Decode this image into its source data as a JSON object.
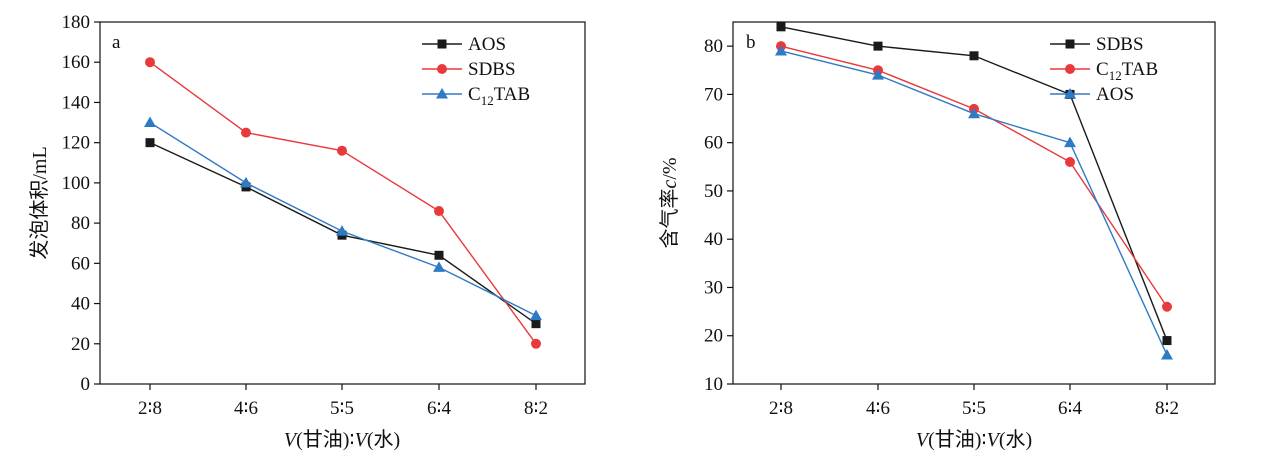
{
  "colors": {
    "black": "#1a1a1a",
    "red": "#e8393b",
    "blue": "#2e7bc4"
  },
  "chart_data": [
    {
      "type": "line",
      "panel_label": "a",
      "categories": [
        "2∶8",
        "4∶6",
        "5∶5",
        "6∶4",
        "8∶2"
      ],
      "xlabel_parts": [
        "V",
        "(甘油)∶",
        "V",
        "(水)"
      ],
      "ylabel": "发泡体积/mL",
      "ylim": [
        0,
        180
      ],
      "yticks": [
        0,
        20,
        40,
        60,
        80,
        100,
        120,
        140,
        160,
        180
      ],
      "grid": false,
      "legend_position": "top-right",
      "series": [
        {
          "name": "AOS",
          "name_parts": [
            "AOS"
          ],
          "color": "#1a1a1a",
          "marker": "square",
          "values": [
            120,
            98,
            74,
            64,
            30
          ]
        },
        {
          "name": "SDBS",
          "name_parts": [
            "SDBS"
          ],
          "color": "#e8393b",
          "marker": "circle",
          "values": [
            160,
            125,
            116,
            86,
            20
          ]
        },
        {
          "name": "C12TAB",
          "name_parts": [
            "C",
            "12",
            "TAB"
          ],
          "color": "#2e7bc4",
          "marker": "triangle",
          "values": [
            130,
            100,
            76,
            58,
            34
          ]
        }
      ]
    },
    {
      "type": "line",
      "panel_label": "b",
      "categories": [
        "2∶8",
        "4∶6",
        "5∶5",
        "6∶4",
        "8∶2"
      ],
      "xlabel_parts": [
        "V",
        "(甘油)∶",
        "V",
        "(水)"
      ],
      "ylabel_parts": [
        "含气率",
        "c",
        "/%"
      ],
      "ylim": [
        10,
        85
      ],
      "yticks": [
        10,
        20,
        30,
        40,
        50,
        60,
        70,
        80
      ],
      "grid": false,
      "legend_position": "top-right",
      "series": [
        {
          "name": "SDBS",
          "name_parts": [
            "SDBS"
          ],
          "color": "#1a1a1a",
          "marker": "square",
          "values": [
            84,
            80,
            78,
            70,
            19
          ]
        },
        {
          "name": "C12TAB",
          "name_parts": [
            "C",
            "12",
            "TAB"
          ],
          "color": "#e8393b",
          "marker": "circle",
          "values": [
            80,
            75,
            67,
            56,
            26
          ]
        },
        {
          "name": "AOS",
          "name_parts": [
            "AOS"
          ],
          "color": "#2e7bc4",
          "marker": "triangle",
          "values": [
            79,
            74,
            66,
            60,
            16
          ]
        }
      ]
    }
  ]
}
